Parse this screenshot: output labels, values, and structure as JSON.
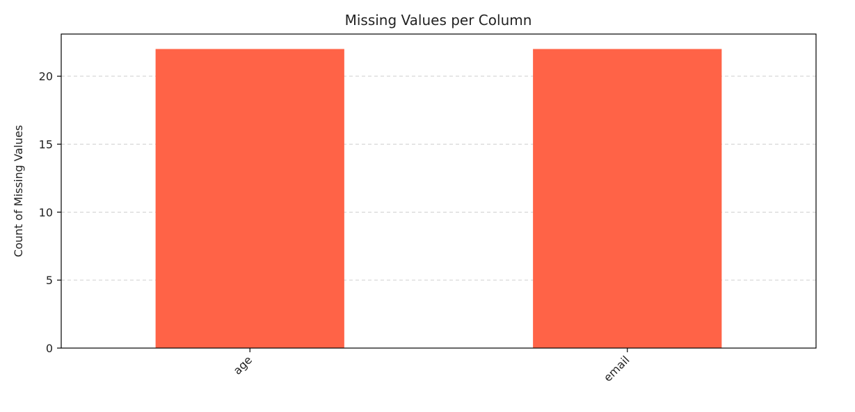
{
  "chart_data": {
    "type": "bar",
    "title": "Missing Values per Column",
    "xlabel": "",
    "ylabel": "Count of Missing Values",
    "categories": [
      "age",
      "email"
    ],
    "values": [
      22,
      22
    ],
    "ylim": [
      0,
      23.1
    ],
    "yticks": [
      0,
      5,
      10,
      15,
      20
    ],
    "ytick_labels": [
      "0",
      "5",
      "10",
      "15",
      "20"
    ],
    "xtick_rotation_deg": 45,
    "grid": "y-dashed",
    "bar_color": "#ff6347",
    "grid_color": "#cfcfcf",
    "axis_color": "#000000",
    "legend": "none"
  }
}
